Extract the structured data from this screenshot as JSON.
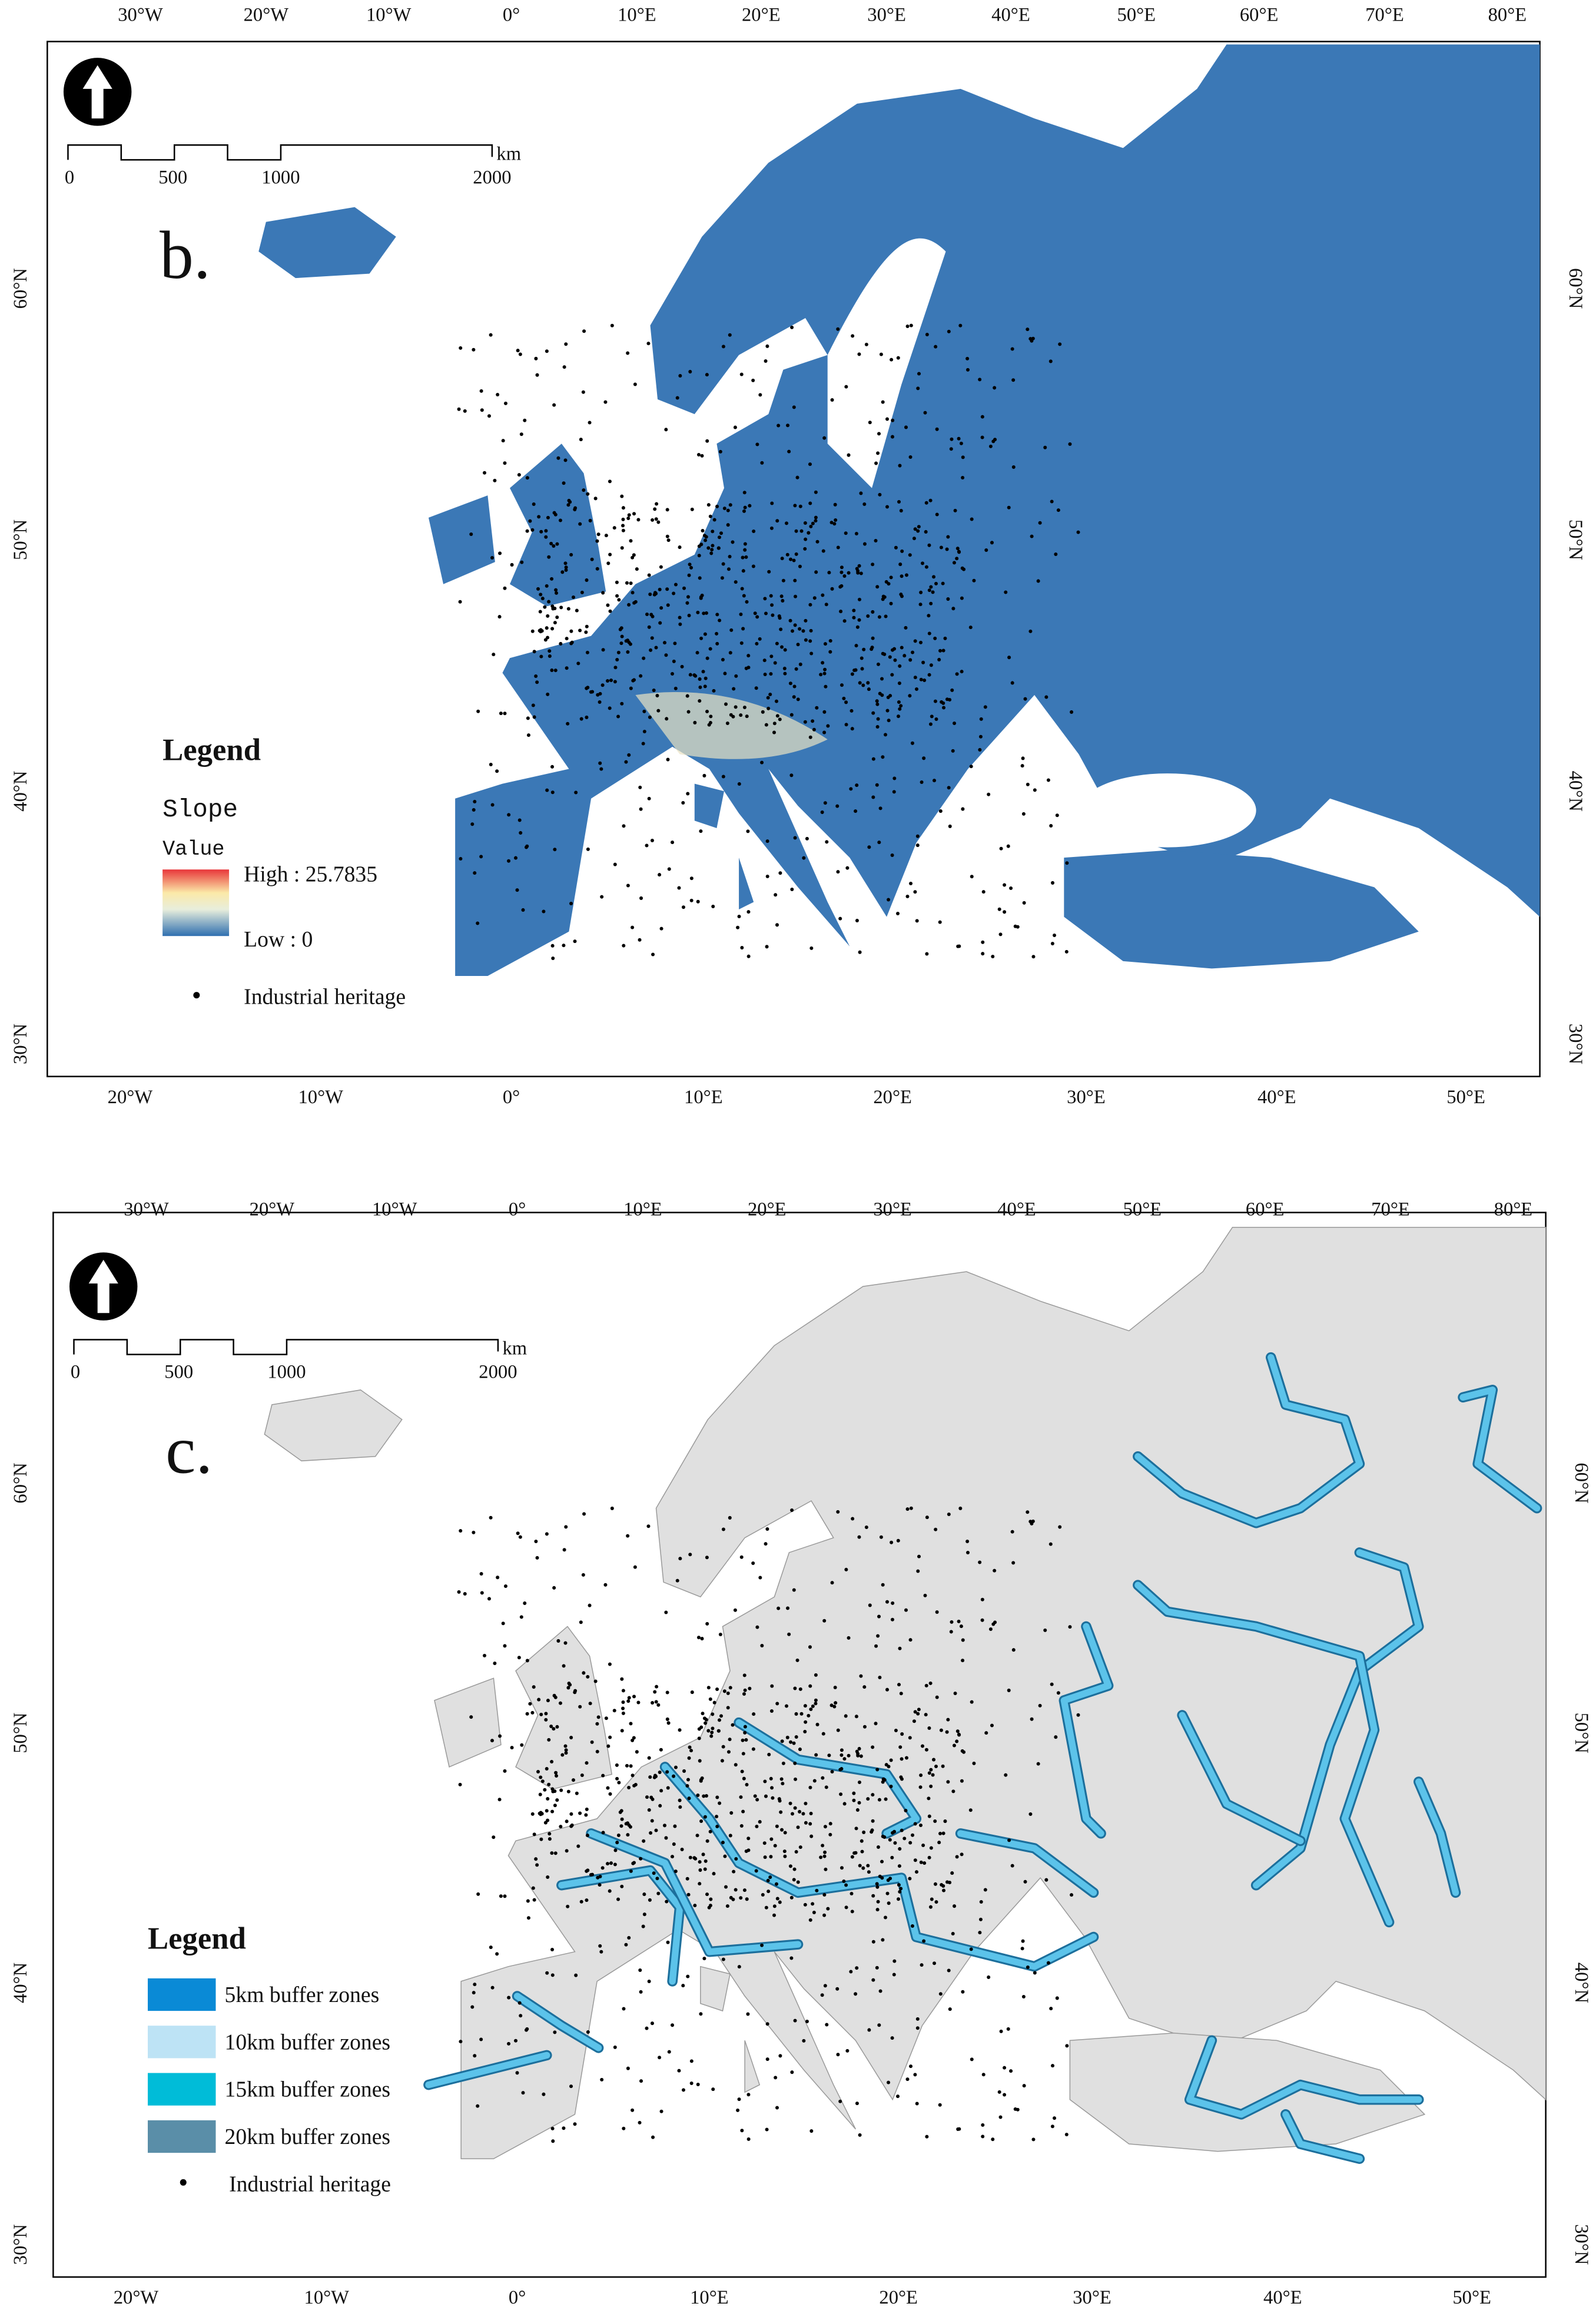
{
  "graticule": {
    "top": [
      "30°W",
      "20°W",
      "10°W",
      "0°",
      "10°E",
      "20°E",
      "30°E",
      "40°E",
      "50°E",
      "60°E",
      "70°E",
      "80°E"
    ],
    "bottom": [
      "20°W",
      "10°W",
      "0°",
      "10°E",
      "20°E",
      "30°E",
      "40°E",
      "50°E"
    ],
    "lat": [
      "60°N",
      "50°N",
      "40°N",
      "30°N"
    ]
  },
  "scale": {
    "labels": [
      "0",
      "500",
      "1000",
      "2000"
    ],
    "unit": "km"
  },
  "panels": [
    {
      "label": "b.",
      "legend": {
        "title": "Legend",
        "layer": "Slope",
        "field": "Value",
        "high": "High : 25.7835",
        "low": "Low : 0",
        "points": "Industrial heritage"
      }
    },
    {
      "label": "c.",
      "legend": {
        "title": "Legend",
        "items": [
          {
            "label": "5km buffer zones",
            "color": "#0a8ad6"
          },
          {
            "label": "10km buffer zones",
            "color": "#bde3f5"
          },
          {
            "label": "15km buffer zones",
            "color": "#00bcd8"
          },
          {
            "label": "20km buffer zones",
            "color": "#5a8ea8"
          }
        ],
        "points": "Industrial heritage"
      }
    }
  ]
}
